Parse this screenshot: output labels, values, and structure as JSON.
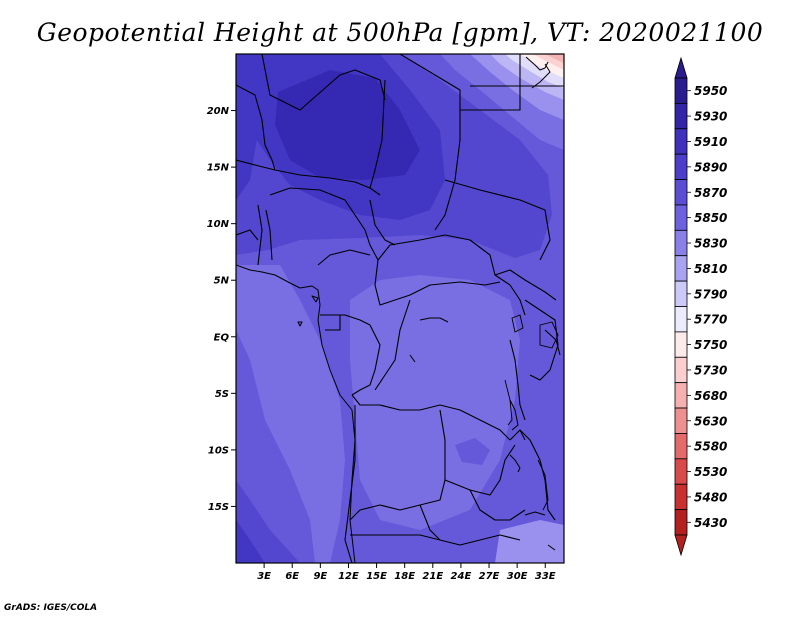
{
  "title": "Geopotential Height at 500hPa [gpm], VT: 2020021100",
  "footer": "GrADS: IGES/COLA",
  "map": {
    "lon_range": [
      0,
      35
    ],
    "lat_range": [
      -20,
      25
    ],
    "x_ticks": [
      "3E",
      "6E",
      "9E",
      "12E",
      "15E",
      "18E",
      "21E",
      "24E",
      "27E",
      "30E",
      "33E"
    ],
    "x_tick_values": [
      3,
      6,
      9,
      12,
      15,
      18,
      21,
      24,
      27,
      30,
      33
    ],
    "y_ticks": [
      "20N",
      "15N",
      "10N",
      "5N",
      "EQ",
      "5S",
      "10S",
      "15S"
    ],
    "y_tick_values": [
      20,
      15,
      10,
      5,
      0,
      -5,
      -10,
      -15
    ],
    "fill_colors": {
      "c5950": "#2a1f9c",
      "c5930": "#3529b4",
      "c5910": "#4236c4",
      "c5890": "#5347cf",
      "c5870": "#6558d9",
      "c5850": "#7a6ee3",
      "c5830": "#9a91ee",
      "c5810": "#bcb6f4",
      "c5790": "#e0ddfa",
      "c5770": "#fff0f0",
      "c5750": "#fbd2d2",
      "c5730": "#f5b4b4"
    }
  },
  "colorbar": {
    "labels": [
      "5950",
      "5930",
      "5910",
      "5890",
      "5870",
      "5850",
      "5830",
      "5810",
      "5790",
      "5770",
      "5750",
      "5730",
      "5680",
      "5630",
      "5580",
      "5530",
      "5480",
      "5430"
    ],
    "colors": [
      "#2a1c8e",
      "#3325a8",
      "#3d31bd",
      "#4a3ecb",
      "#5a4ed4",
      "#6c61de",
      "#8a80ea",
      "#aaa3f1",
      "#ccc8f8",
      "#eceafd",
      "#fdeaea",
      "#fbcfcf",
      "#f5b0b0",
      "#ee9090",
      "#e56a6a",
      "#d94a4a",
      "#c93030",
      "#b41f1f"
    ]
  }
}
